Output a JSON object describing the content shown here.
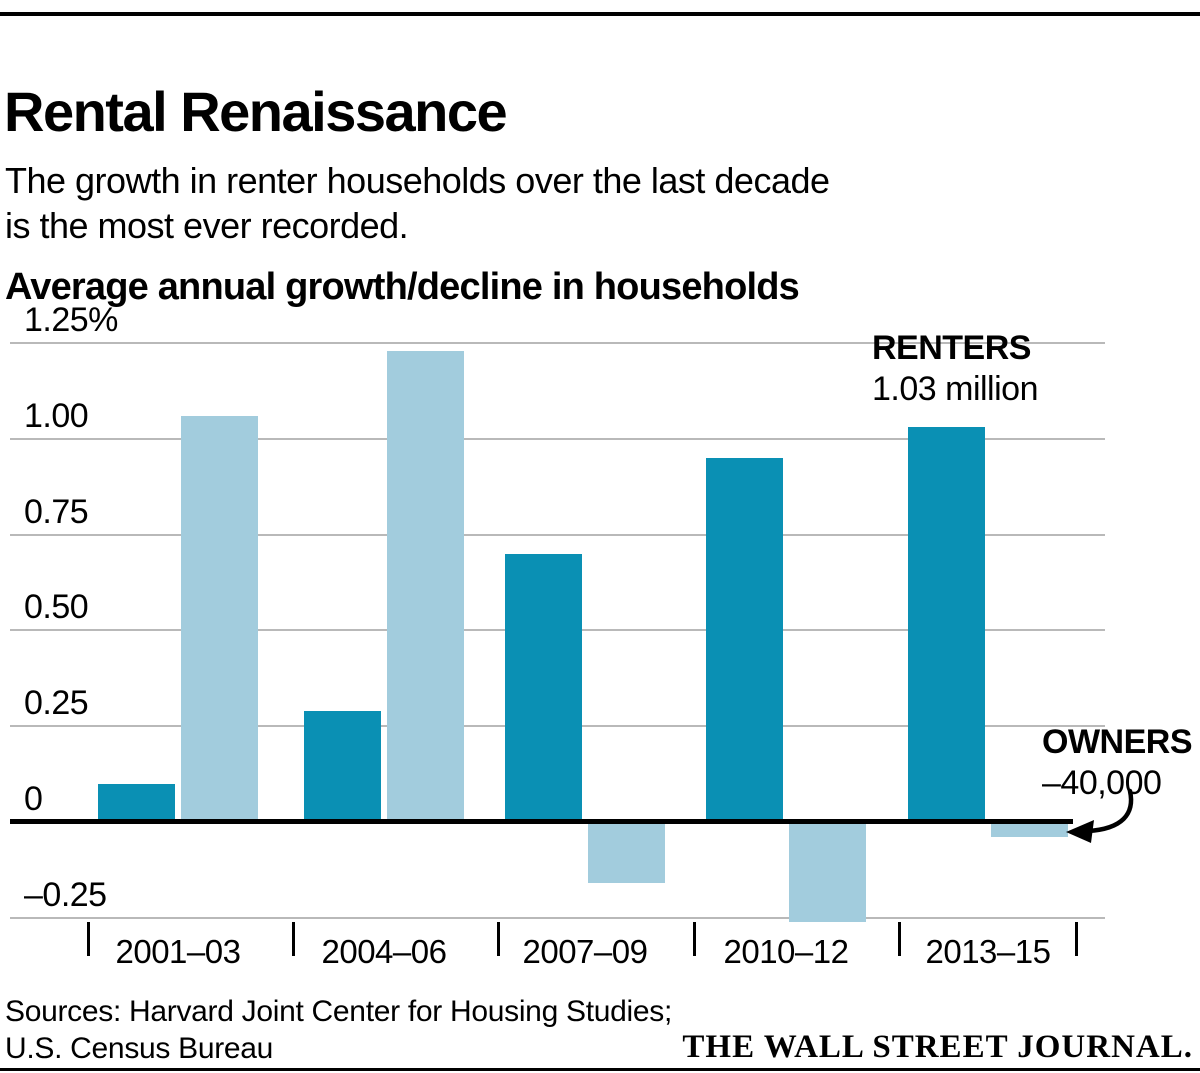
{
  "header": {
    "title": "Rental Renaissance",
    "subtitle_line1": "The growth in renter households over the last decade",
    "subtitle_line2": "is the most ever recorded.",
    "section_label": "Average annual growth/decline in households"
  },
  "chart_data": {
    "type": "bar",
    "title": "Average annual growth/decline in households",
    "unit": "percent",
    "categories": [
      "2001–03",
      "2004–06",
      "2007–09",
      "2010–12",
      "2013–15"
    ],
    "series": [
      {
        "name": "RENTERS",
        "color": "#0a90b4",
        "values": [
          0.1,
          0.29,
          0.7,
          0.95,
          1.03
        ]
      },
      {
        "name": "OWNERS",
        "color": "#a2ccdd",
        "values": [
          1.06,
          1.23,
          -0.16,
          -0.26,
          -0.04
        ]
      }
    ],
    "y_ticks": [
      1.25,
      1.0,
      0.75,
      0.5,
      0.25,
      0,
      -0.25
    ],
    "y_tick_labels": [
      "1.25%",
      "1.00",
      "0.75",
      "0.50",
      "0.25",
      "0",
      "–0.25"
    ],
    "ylim": [
      -0.375,
      1.375
    ],
    "grid": "horizontal gray lines, heavy black zero baseline",
    "legend_position": "inline annotations",
    "annotations": {
      "renters": {
        "label": "RENTERS",
        "value": "1.03 million"
      },
      "owners": {
        "label": "OWNERS",
        "value": "–40,000"
      }
    }
  },
  "colors": {
    "renters_bar": "#0a90b4",
    "owners_bar": "#a2ccdd",
    "gridline": "#b9b9b9",
    "text": "#000000",
    "background": "#ffffff"
  },
  "footer": {
    "sources_line1": "Sources: Harvard Joint Center for Housing Studies;",
    "sources_line2": "U.S. Census Bureau",
    "logo": "THE WALL STREET JOURNAL."
  }
}
